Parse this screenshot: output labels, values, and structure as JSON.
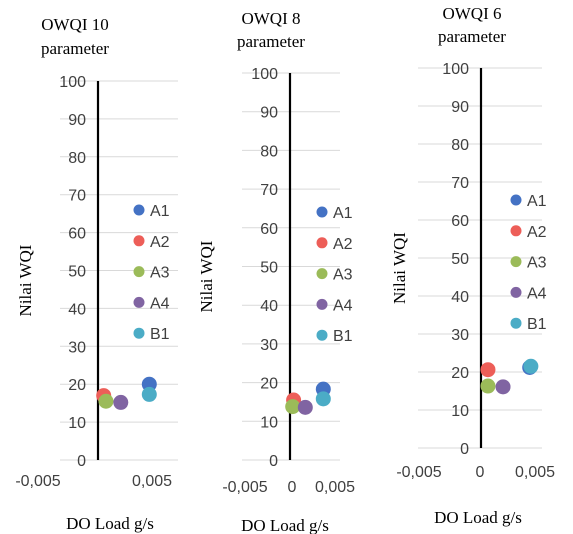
{
  "chart_data": [
    {
      "type": "scatter",
      "title": "OWQI 10",
      "subtitle": "parameter",
      "xlabel": "DO Load g/s",
      "ylabel": "Nilai WQI",
      "xlim": [
        -0.005,
        0.0065
      ],
      "ylim": [
        0,
        100
      ],
      "x_tick_labels": [
        "-0,005",
        "0,005"
      ],
      "y_ticks": [
        0,
        10,
        20,
        30,
        40,
        50,
        60,
        70,
        80,
        90,
        100
      ],
      "grid": "horizontal",
      "legend_position": "right",
      "series": [
        {
          "name": "A1",
          "color": "#4472C4",
          "x": [
            0.0045
          ],
          "y": [
            20
          ]
        },
        {
          "name": "A2",
          "color": "#ED5E58",
          "x": [
            0.0005
          ],
          "y": [
            17
          ]
        },
        {
          "name": "A3",
          "color": "#9BBB59",
          "x": [
            0.0007
          ],
          "y": [
            15.5
          ]
        },
        {
          "name": "A4",
          "color": "#8064A2",
          "x": [
            0.002
          ],
          "y": [
            15.2
          ]
        },
        {
          "name": "B1",
          "color": "#4BACC6",
          "x": [
            0.0045
          ],
          "y": [
            17.3
          ]
        }
      ]
    },
    {
      "type": "scatter",
      "title": "OWQI 8",
      "subtitle": "parameter",
      "xlabel": "DO Load g/s",
      "ylabel": "Nilai WQI",
      "xlim": [
        -0.005,
        0.005
      ],
      "ylim": [
        0,
        100
      ],
      "x_tick_labels": [
        "-0,005",
        "0",
        "0,005"
      ],
      "y_ticks": [
        0,
        10,
        20,
        30,
        40,
        50,
        60,
        70,
        80,
        90,
        100
      ],
      "grid": "horizontal",
      "legend_position": "right",
      "series": [
        {
          "name": "A1",
          "color": "#4472C4",
          "x": [
            0.0037
          ],
          "y": [
            18.3
          ]
        },
        {
          "name": "A2",
          "color": "#ED5E58",
          "x": [
            0.0004
          ],
          "y": [
            15.5
          ]
        },
        {
          "name": "A3",
          "color": "#9BBB59",
          "x": [
            0.0003
          ],
          "y": [
            13.8
          ]
        },
        {
          "name": "A4",
          "color": "#8064A2",
          "x": [
            0.0017
          ],
          "y": [
            13.6
          ]
        },
        {
          "name": "B1",
          "color": "#4BACC6",
          "x": [
            0.0037
          ],
          "y": [
            15.8
          ]
        }
      ]
    },
    {
      "type": "scatter",
      "title": "OWQI 6",
      "subtitle": "parameter",
      "xlabel": "DO Load g/s",
      "ylabel": "Nilai WQI",
      "xlim": [
        -0.005,
        0.005
      ],
      "ylim": [
        0,
        100
      ],
      "x_tick_labels": [
        "-0,005",
        "0",
        "0,005"
      ],
      "y_ticks": [
        0,
        10,
        20,
        30,
        40,
        50,
        60,
        70,
        80,
        90,
        100
      ],
      "grid": "horizontal",
      "legend_position": "right",
      "series": [
        {
          "name": "A1",
          "color": "#4472C4",
          "x": [
            0.0042
          ],
          "y": [
            21.2
          ]
        },
        {
          "name": "A2",
          "color": "#ED5E58",
          "x": [
            0.0006
          ],
          "y": [
            20.6
          ]
        },
        {
          "name": "A3",
          "color": "#9BBB59",
          "x": [
            0.0006
          ],
          "y": [
            16.3
          ]
        },
        {
          "name": "A4",
          "color": "#8064A2",
          "x": [
            0.0019
          ],
          "y": [
            16.1
          ]
        },
        {
          "name": "B1",
          "color": "#4BACC6",
          "x": [
            0.0043
          ],
          "y": [
            21.5
          ]
        }
      ]
    }
  ]
}
